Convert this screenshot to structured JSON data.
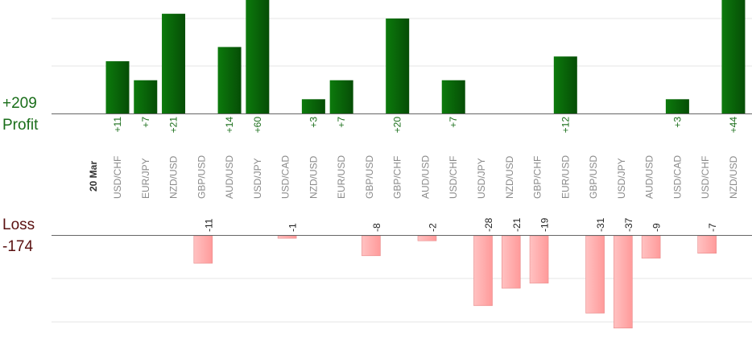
{
  "summary": {
    "profit_total": "+209",
    "profit_label": "Profit",
    "loss_label": "Loss",
    "loss_total": "-174"
  },
  "colors": {
    "profit_bar": "#0a6a0a",
    "profit_text": "#1a6e1a",
    "loss_bar": "#ffb3b3",
    "loss_text": "#5a1010",
    "axis": "#666666",
    "grid": "#e6e6e6"
  },
  "chart_data": {
    "type": "bar",
    "date_label": "20 Mar",
    "categories": [
      "USD/CHF",
      "EUR/JPY",
      "NZD/USD",
      "GBP/USD",
      "AUD/USD",
      "USD/JPY",
      "USD/CAD",
      "NZD/USD",
      "EUR/USD",
      "GBP/USD",
      "GBP/CHF",
      "AUD/USD",
      "USD/CHF",
      "USD/JPY",
      "NZD/USD",
      "GBP/CHF",
      "EUR/USD",
      "GBP/USD",
      "USD/JPY",
      "AUD/USD",
      "USD/CAD",
      "USD/CHF",
      "NZD/USD"
    ],
    "series": [
      {
        "name": "Profit",
        "values": [
          11,
          7,
          21,
          null,
          14,
          60,
          null,
          3,
          7,
          null,
          20,
          null,
          7,
          null,
          null,
          null,
          12,
          null,
          null,
          null,
          3,
          null,
          44
        ]
      },
      {
        "name": "Loss",
        "values": [
          null,
          null,
          null,
          -11,
          null,
          null,
          -1,
          null,
          null,
          -8,
          null,
          -2,
          null,
          -28,
          -21,
          -19,
          null,
          -31,
          -37,
          -9,
          null,
          -7,
          null
        ]
      }
    ],
    "profit_ylim": [
      0,
      24
    ],
    "loss_ylim": [
      -40,
      0
    ],
    "grid": true
  }
}
